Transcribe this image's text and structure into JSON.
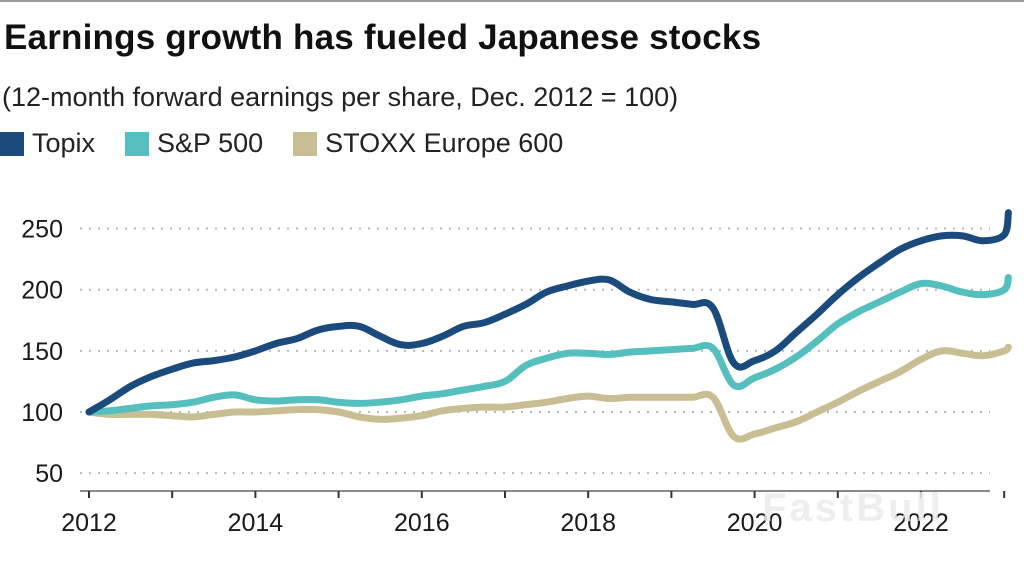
{
  "chart_data": {
    "type": "line",
    "title": "Earnings growth has fueled Japanese stocks",
    "subtitle": "(12-month forward earnings per share, Dec. 2012 = 100)",
    "xlabel": "",
    "ylabel": "",
    "ylim": [
      40,
      265
    ],
    "xlim": [
      2012,
      2023.1
    ],
    "yticks": [
      250,
      200,
      150,
      100,
      50
    ],
    "xticks": [
      2012,
      2013,
      2014,
      2015,
      2016,
      2017,
      2018,
      2019,
      2020,
      2021,
      2022,
      2023
    ],
    "xtick_labels": [
      "2012",
      "",
      "2014",
      "",
      "2016",
      "",
      "2018",
      "",
      "2020",
      "",
      "2022",
      ""
    ],
    "grid": "horizontal-dotted",
    "legend_position": "top-left",
    "x": [
      2012.0,
      2012.25,
      2012.5,
      2012.75,
      2013.0,
      2013.25,
      2013.5,
      2013.75,
      2014.0,
      2014.25,
      2014.5,
      2014.75,
      2015.0,
      2015.25,
      2015.5,
      2015.75,
      2016.0,
      2016.25,
      2016.5,
      2016.75,
      2017.0,
      2017.25,
      2017.5,
      2017.75,
      2018.0,
      2018.25,
      2018.5,
      2018.75,
      2019.0,
      2019.25,
      2019.5,
      2019.75,
      2020.0,
      2020.25,
      2020.5,
      2020.75,
      2021.0,
      2021.25,
      2021.5,
      2021.75,
      2022.0,
      2022.25,
      2022.5,
      2022.75,
      2023.0
    ],
    "series": [
      {
        "name": "Topix",
        "color": "#1b4a7d",
        "values": [
          100,
          110,
          121,
          129,
          135,
          140,
          142,
          145,
          150,
          156,
          160,
          167,
          170,
          170,
          162,
          155,
          156,
          162,
          170,
          173,
          180,
          188,
          198,
          203,
          207,
          208,
          198,
          192,
          190,
          188,
          185,
          140,
          142,
          150,
          165,
          180,
          196,
          210,
          222,
          233,
          240,
          244,
          244,
          240,
          245
        ]
      },
      {
        "name": "S&P 500",
        "color": "#55bfbd",
        "values": [
          100,
          101,
          103,
          105,
          106,
          108,
          112,
          114,
          110,
          109,
          110,
          110,
          108,
          107,
          108,
          110,
          113,
          115,
          118,
          121,
          125,
          138,
          144,
          148,
          148,
          147,
          149,
          150,
          151,
          152,
          152,
          122,
          128,
          135,
          145,
          158,
          172,
          182,
          190,
          198,
          205,
          203,
          198,
          196,
          200
        ]
      },
      {
        "name": "STOXX Europe 600",
        "color": "#c9bd94",
        "values": [
          100,
          98,
          98,
          98,
          97,
          96,
          98,
          100,
          100,
          101,
          102,
          102,
          100,
          96,
          94,
          95,
          97,
          101,
          103,
          104,
          104,
          106,
          108,
          111,
          113,
          111,
          112,
          112,
          112,
          112,
          112,
          80,
          82,
          87,
          92,
          100,
          108,
          117,
          125,
          133,
          143,
          150,
          148,
          146,
          150
        ]
      }
    ],
    "tail": {
      "x": [
        2023.05
      ],
      "Topix": [
        263
      ],
      "S&P 500": [
        210
      ],
      "STOXX Europe 600": [
        153
      ]
    }
  },
  "watermark": "FastBull"
}
